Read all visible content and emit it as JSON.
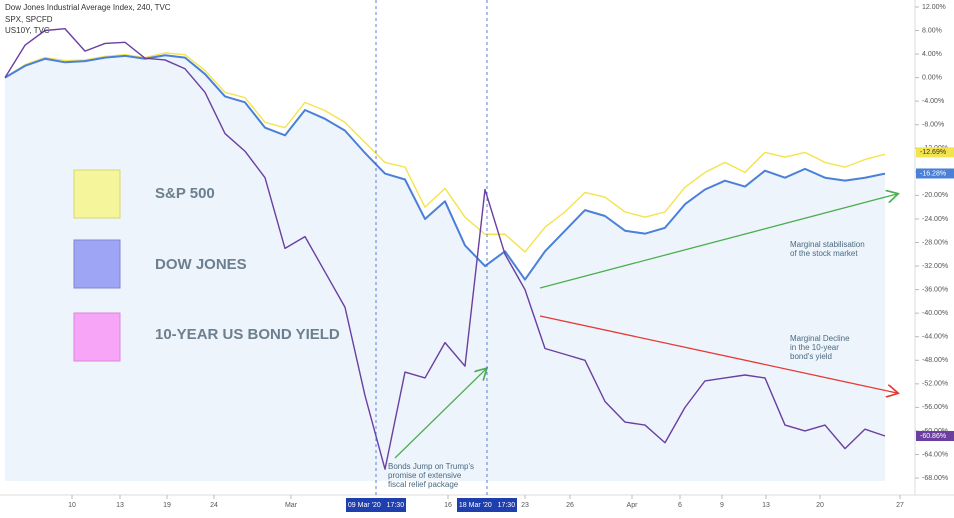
{
  "chart_data": {
    "type": "line",
    "header": [
      "Dow Jones Industrial Average Index, 240, TVC",
      "SPX, SPCFD",
      "US10Y, TVC"
    ],
    "x": [
      0,
      1,
      2,
      3,
      4,
      5,
      6,
      7,
      8,
      9,
      10,
      11,
      12,
      13,
      14,
      15,
      16,
      17,
      18,
      19,
      20,
      21,
      22,
      23,
      24,
      25,
      26,
      27,
      28,
      29,
      30,
      31,
      32,
      33,
      34,
      35,
      36,
      37,
      38,
      39,
      40,
      41,
      42,
      43,
      44
    ],
    "xlim": [
      0,
      45.5
    ],
    "xticks": [
      {
        "value": 3.35,
        "label": "10"
      },
      {
        "value": 5.75,
        "label": "13"
      },
      {
        "value": 8.1,
        "label": "19"
      },
      {
        "value": 10.45,
        "label": "24"
      },
      {
        "value": 14.3,
        "label": "Mar"
      },
      {
        "value": 18.55,
        "label": "09 Mar '20   17:30"
      },
      {
        "value": 22.15,
        "label": "16"
      },
      {
        "value": 24.1,
        "label": "18 Mar '20   17:30"
      },
      {
        "value": 26,
        "label": "23"
      },
      {
        "value": 28.25,
        "label": "26"
      },
      {
        "value": 31.35,
        "label": "Apr"
      },
      {
        "value": 33.75,
        "label": "6"
      },
      {
        "value": 35.85,
        "label": "9"
      },
      {
        "value": 38.05,
        "label": "13"
      },
      {
        "value": 40.75,
        "label": "20"
      },
      {
        "value": 44.75,
        "label": "27"
      }
    ],
    "highlighted_xticks": [
      5,
      7
    ],
    "ylim": [
      -68.5,
      12.5
    ],
    "yticks": [
      {
        "value": 12,
        "label": "12.00%"
      },
      {
        "value": 8,
        "label": "8.00%"
      },
      {
        "value": 4,
        "label": "4.00%"
      },
      {
        "value": 0,
        "label": "0.00%"
      },
      {
        "value": -4,
        "label": "-4.00%"
      },
      {
        "value": -8,
        "label": "-8.00%"
      },
      {
        "value": -12,
        "label": "-12.00%"
      },
      {
        "value": -16,
        "label": "-16.00%"
      },
      {
        "value": -20,
        "label": "-20.00%"
      },
      {
        "value": -24,
        "label": "-24.00%"
      },
      {
        "value": -28,
        "label": "-28.00%"
      },
      {
        "value": -32,
        "label": "-32.00%"
      },
      {
        "value": -36,
        "label": "-36.00%"
      },
      {
        "value": -40,
        "label": "-40.00%"
      },
      {
        "value": -44,
        "label": "-44.00%"
      },
      {
        "value": -48,
        "label": "-48.00%"
      },
      {
        "value": -52,
        "label": "-52.00%"
      },
      {
        "value": -56,
        "label": "-56.00%"
      },
      {
        "value": -60,
        "label": "-60.00%"
      },
      {
        "value": -64,
        "label": "-64.00%"
      },
      {
        "value": -68,
        "label": "-68.00%"
      }
    ],
    "series": [
      {
        "name": "S&P 500",
        "color": "#f3e34c",
        "last_value": -12.69,
        "last_label": "-12.69%",
        "values": [
          0,
          2.2,
          3.4,
          2.9,
          3,
          3.6,
          3.9,
          3.4,
          4.2,
          3.9,
          1.2,
          -2.5,
          -3.4,
          -7.6,
          -8.5,
          -4.2,
          -5.6,
          -7.6,
          -11,
          -14.4,
          -15.2,
          -22,
          -18.8,
          -23.7,
          -26.6,
          -26.6,
          -29.6,
          -25.4,
          -22.8,
          -19.5,
          -20.3,
          -22.8,
          -23.7,
          -22.8,
          -18.6,
          -16.1,
          -14.4,
          -16.1,
          -12.7,
          -13.5,
          -12.7,
          -14.4,
          -15.2,
          -13.9,
          -13
        ]
      },
      {
        "name": "DOW JONES",
        "color": "#4a80d8",
        "last_value": -16.28,
        "last_label": "-16.28%",
        "values": [
          0,
          2,
          3.2,
          2.6,
          2.8,
          3.4,
          3.7,
          3.2,
          3.8,
          3.4,
          0.6,
          -3.2,
          -4.2,
          -8.5,
          -9.8,
          -5.5,
          -7,
          -9,
          -12.8,
          -16.3,
          -17.3,
          -24,
          -21,
          -28.5,
          -32,
          -29.5,
          -34.3,
          -29.5,
          -26,
          -22.5,
          -23.5,
          -26,
          -26.5,
          -25.5,
          -21.5,
          -19,
          -17.5,
          -18.5,
          -15.8,
          -17,
          -15.5,
          -17,
          -17.5,
          -17,
          -16.3
        ]
      },
      {
        "name": "10-YEAR US BOND YIELD",
        "color": "#6a3fa0",
        "last_value": -60.86,
        "last_label": "-60.86%",
        "values": [
          0,
          5.5,
          8,
          8.3,
          4.5,
          5.8,
          6,
          3.3,
          3,
          1.5,
          -2.5,
          -9.5,
          -12.5,
          -17,
          -29,
          -27,
          -33,
          -39,
          -54,
          -66.5,
          -50,
          -51,
          -45,
          -49,
          -19,
          -30,
          -36,
          -46,
          -47,
          -48,
          -55,
          -58.5,
          -59,
          -62,
          -56,
          -51.5,
          -51,
          -50.5,
          -51,
          -59,
          -60,
          -59,
          -63,
          -59.7,
          -60.86
        ]
      }
    ],
    "annotations": [
      {
        "lines": [
          "Bonds Jump on Trump's",
          "promise of extensive",
          "fiscal relief package"
        ]
      },
      {
        "lines": [
          "Marginal stabilisation",
          "of the stock market"
        ]
      },
      {
        "lines": [
          "Marginal Decline",
          "in the 10-year",
          "bond's yield"
        ]
      }
    ]
  }
}
